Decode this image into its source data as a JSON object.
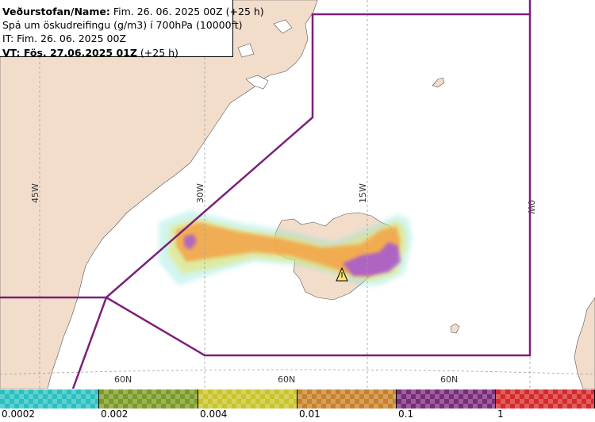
{
  "header": {
    "line1_bold": "Veðurstofan/Name:",
    "line1_rest": " Fim. 26. 06. 2025 00Z (+25 h)",
    "line2": "Spá um öskudreifingu (g/m3) í 700hPa (10000ft)",
    "line3": "IT: Fim. 26. 06. 2025 00Z",
    "line4_bold": "VT: Fös. 27.06.2025 01Z",
    "line4_rest": " (+25 h)"
  },
  "map": {
    "longitude_labels": [
      "45W",
      "30W",
      "15W",
      "0W"
    ],
    "latitude_labels": [
      "60N",
      "60N",
      "60N"
    ],
    "colors": {
      "ocean": "#ffffff",
      "land": "#f2ddcb",
      "graticule": "#9aa0a6",
      "boundary": "#7b1f7b"
    },
    "volcano_icon": "warning-triangle-icon"
  },
  "legend": {
    "tick_labels": [
      "0.0002",
      "0.002",
      "0.004",
      "0.01",
      "0.1",
      "1"
    ],
    "colors": [
      "#29c0c0",
      "#7a9a25",
      "#c8c42a",
      "#c7812a",
      "#7a2b7a",
      "#d42a2a"
    ]
  }
}
